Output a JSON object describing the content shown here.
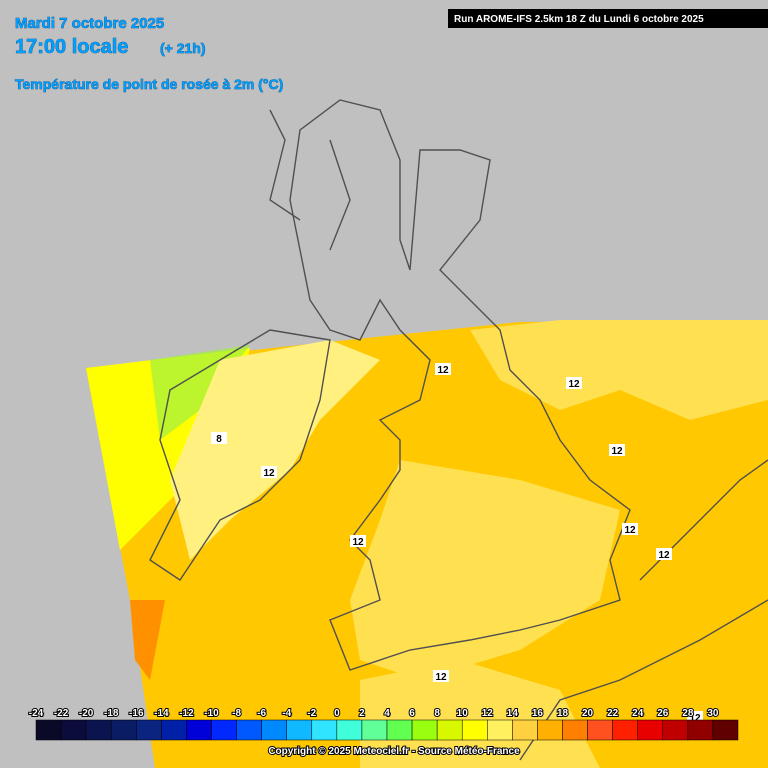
{
  "header": {
    "date": "Mardi 7 octobre 2025",
    "time": "17:00 locale",
    "lead": "(+ 21h)",
    "parameter": "Température de point de rosée à 2m (°C)",
    "run": "Run AROME-IFS 2.5km 18 Z du Lundi 6 octobre 2025"
  },
  "contour_labels": [
    12,
    12,
    12,
    8,
    12,
    12,
    12,
    12,
    12,
    12
  ],
  "legend": {
    "ticks": [
      -24,
      -22,
      -20,
      -18,
      -16,
      -14,
      -12,
      -10,
      -8,
      -6,
      -4,
      -2,
      0,
      2,
      4,
      6,
      8,
      10,
      12,
      14,
      16,
      18,
      20,
      22,
      24,
      26,
      28,
      30
    ],
    "colors": [
      "#0a0a28",
      "#0c0c3c",
      "#0c1450",
      "#0a1c64",
      "#0a2480",
      "#0020a8",
      "#0000d8",
      "#0028ff",
      "#0058ff",
      "#0088ff",
      "#10b8ff",
      "#30e4ff",
      "#40ffd8",
      "#60ff98",
      "#60ff50",
      "#98ff10",
      "#d8f800",
      "#ffff00",
      "#fff060",
      "#ffd040",
      "#ffb000",
      "#ff8000",
      "#ff5020",
      "#ff2000",
      "#e80000",
      "#c00000",
      "#900000",
      "#600000"
    ]
  },
  "footer": {
    "copyright": "Copyright © 2025 Meteociel.fr - Source Météo-France"
  }
}
